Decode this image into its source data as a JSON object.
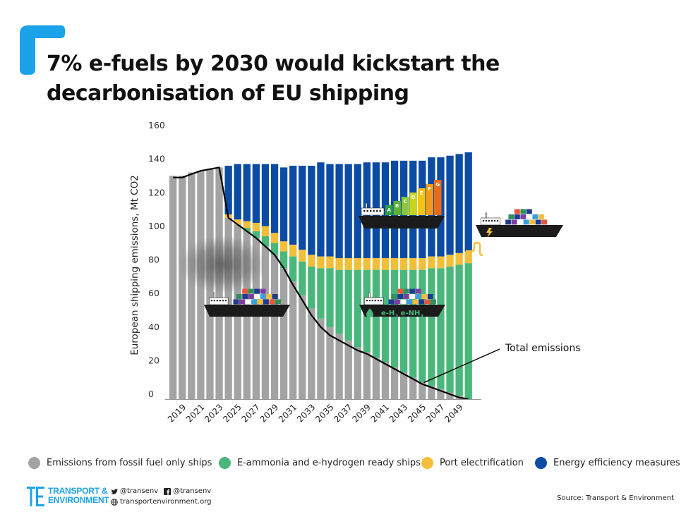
{
  "title": "7% e-fuels by 2030 would kickstart the decarbonisation of EU shipping",
  "colors": {
    "accent": "#1aa3e8",
    "fossil": "#a3a3a3",
    "ammonia_hydrogen": "#49b77b",
    "port_electrification": "#f2bf3a",
    "energy_efficiency": "#0b4ba3",
    "total_line": "#000000"
  },
  "chart_data": {
    "type": "bar",
    "stacked": true,
    "ylabel": "European shipping emissions, Mt CO2",
    "ylim": [
      0,
      160
    ],
    "yticks": [
      0,
      20,
      40,
      60,
      80,
      100,
      120,
      140,
      160
    ],
    "x": [
      2018,
      2019,
      2020,
      2021,
      2022,
      2023,
      2024,
      2025,
      2026,
      2027,
      2028,
      2029,
      2030,
      2031,
      2032,
      2033,
      2034,
      2035,
      2036,
      2037,
      2038,
      2039,
      2040,
      2041,
      2042,
      2043,
      2044,
      2045,
      2046,
      2047,
      2048,
      2049,
      2050
    ],
    "xtick_labels": [
      "2019",
      "2021",
      "2023",
      "2025",
      "2027",
      "2029",
      "2031",
      "2033",
      "2035",
      "2037",
      "2039",
      "2041",
      "2043",
      "2045",
      "2047",
      "2049"
    ],
    "series": [
      {
        "name": "Emissions from fossil fuel only ships",
        "color_key": "fossil",
        "values": [
          133,
          133,
          135,
          136,
          137,
          138,
          108,
          104,
          100,
          96,
          91,
          86,
          78,
          70,
          62,
          54,
          48,
          43,
          39,
          35,
          31,
          28,
          25,
          22,
          19,
          16,
          13,
          10,
          8,
          6,
          4,
          2,
          0
        ]
      },
      {
        "name": "E-ammonia and e-hydrogen ready ships",
        "color_key": "ammonia_hydrogen",
        "values": [
          0,
          0,
          0,
          0,
          0,
          0,
          0,
          0,
          2,
          4,
          6,
          7,
          10,
          15,
          20,
          25,
          30,
          35,
          38,
          42,
          46,
          49,
          52,
          55,
          58,
          61,
          64,
          67,
          70,
          72,
          75,
          78,
          81
        ]
      },
      {
        "name": "Port electrification",
        "color_key": "port_electrification",
        "values": [
          0,
          0,
          0,
          0,
          0,
          0,
          2,
          3,
          4,
          5,
          6,
          6,
          6,
          7,
          7,
          7,
          7,
          7,
          7,
          7,
          7,
          7,
          7,
          7,
          7,
          7,
          7,
          7,
          7,
          7,
          7,
          7,
          7
        ]
      },
      {
        "name": "Energy efficiency measures",
        "color_key": "energy_efficiency",
        "values": [
          0,
          0,
          0,
          0,
          0,
          0,
          29,
          33,
          34,
          35,
          37,
          41,
          44,
          47,
          50,
          53,
          56,
          55,
          56,
          56,
          56,
          57,
          57,
          57,
          58,
          58,
          58,
          58,
          59,
          59,
          59,
          59,
          59
        ]
      }
    ],
    "line": {
      "name": "Total emissions",
      "values": [
        132,
        132,
        134,
        136,
        137,
        138,
        108,
        104,
        100,
        96,
        91,
        86,
        78,
        68,
        59,
        50,
        43,
        38,
        35,
        32,
        29,
        27,
        24,
        21,
        18,
        15,
        12,
        9,
        7,
        5,
        3,
        1,
        0
      ]
    },
    "annotation": "Total emissions",
    "ship_labels": {
      "fuel_a": "e-H",
      "fuel_a_sub": "2",
      "fuel_b": "e-NH",
      "fuel_b_sub": "3",
      "efficiency_classes": [
        "A",
        "B",
        "C",
        "D",
        "E",
        "F",
        "G"
      ]
    },
    "legend_position": "bottom",
    "grid": false
  },
  "legend": [
    {
      "label": "Emissions from fossil fuel only ships",
      "color_key": "fossil"
    },
    {
      "label": "E-ammonia and e-hydrogen ready ships",
      "color_key": "ammonia_hydrogen"
    },
    {
      "label": "Port electrification",
      "color_key": "port_electrification"
    },
    {
      "label": "Energy efficiency measures",
      "color_key": "energy_efficiency"
    }
  ],
  "footer": {
    "logo_line1": "TRANSPORT &",
    "logo_line2": "ENVIRONMENT",
    "twitter": "@transenv",
    "facebook": "@transenv",
    "website": "transportenvironment.org",
    "source": "Source: Transport & Environment"
  }
}
